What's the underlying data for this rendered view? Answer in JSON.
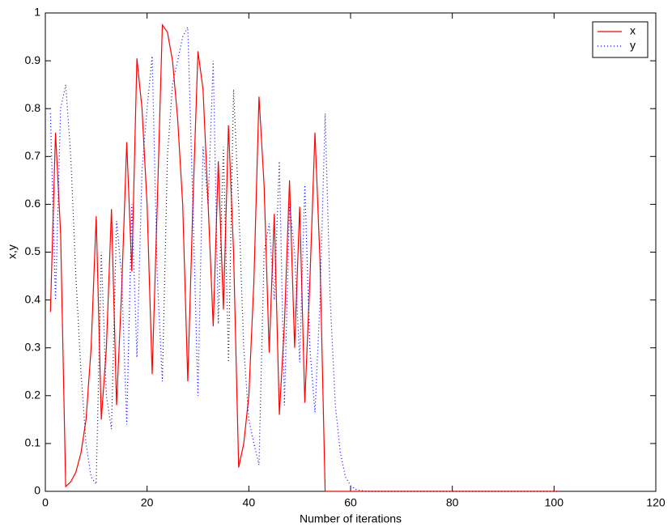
{
  "chart_data": {
    "type": "line",
    "xlabel": "Number of iterations",
    "ylabel": "x,y",
    "xlim": [
      0,
      120
    ],
    "xticks": [
      0,
      20,
      40,
      60,
      80,
      100,
      120
    ],
    "ylim": [
      0,
      1
    ],
    "yticks": [
      0,
      0.1,
      0.2,
      0.3,
      0.4,
      0.5,
      0.6,
      0.7,
      0.8,
      0.9,
      1
    ],
    "legend": "upper right",
    "grid": false,
    "x": [
      1,
      2,
      3,
      4,
      5,
      6,
      7,
      8,
      9,
      10,
      11,
      12,
      13,
      14,
      15,
      16,
      17,
      18,
      19,
      20,
      21,
      22,
      23,
      24,
      25,
      26,
      27,
      28,
      29,
      30,
      31,
      32,
      33,
      34,
      35,
      36,
      37,
      38,
      39,
      40,
      41,
      42,
      43,
      44,
      45,
      46,
      47,
      48,
      49,
      50,
      51,
      52,
      53,
      54,
      55,
      56,
      57,
      58,
      59,
      60,
      61,
      62,
      63,
      64,
      65,
      66,
      67,
      68,
      69,
      70,
      71,
      72,
      73,
      74,
      75,
      76,
      77,
      78,
      79,
      80,
      81,
      82,
      83,
      84,
      85,
      86,
      87,
      88,
      89,
      90,
      91,
      92,
      93,
      94,
      95,
      96,
      97,
      98,
      99,
      100,
      101
    ],
    "series": [
      {
        "name": "x",
        "color": "#ff0000",
        "linestyle": "solid",
        "values": [
          0.375,
          0.75,
          0.54,
          0.01,
          0.02,
          0.04,
          0.08,
          0.15,
          0.3,
          0.575,
          0.15,
          0.3,
          0.59,
          0.18,
          0.42,
          0.73,
          0.46,
          0.905,
          0.8,
          0.6,
          0.245,
          0.6,
          0.975,
          0.96,
          0.9,
          0.78,
          0.6,
          0.23,
          0.6,
          0.92,
          0.84,
          0.6,
          0.345,
          0.69,
          0.38,
          0.765,
          0.5,
          0.05,
          0.1,
          0.2,
          0.44,
          0.825,
          0.64,
          0.29,
          0.58,
          0.16,
          0.35,
          0.65,
          0.3,
          0.595,
          0.185,
          0.44,
          0.75,
          0.48,
          0,
          0,
          0,
          0,
          0,
          0,
          0,
          0,
          0,
          0,
          0,
          0,
          0,
          0,
          0,
          0,
          0,
          0,
          0,
          0,
          0,
          0,
          0,
          0,
          0,
          0,
          0,
          0,
          0,
          0,
          0,
          0,
          0,
          0,
          0,
          0,
          0,
          0,
          0,
          0,
          0,
          0,
          0,
          0,
          0,
          0,
          0
        ]
      },
      {
        "name": "y",
        "color": "#0000ff",
        "linestyle": "dotted",
        "values": [
          0.79,
          0.4,
          0.8,
          0.85,
          0.7,
          0.45,
          0.25,
          0.1,
          0.03,
          0.015,
          0.5,
          0.2,
          0.13,
          0.565,
          0.45,
          0.14,
          0.6,
          0.28,
          0.67,
          0.8,
          0.91,
          0.45,
          0.23,
          0.7,
          0.85,
          0.9,
          0.95,
          0.97,
          0.6,
          0.2,
          0.72,
          0.6,
          0.9,
          0.35,
          0.72,
          0.27,
          0.84,
          0.6,
          0.3,
          0.15,
          0.1,
          0.055,
          0.5,
          0.56,
          0.4,
          0.69,
          0.18,
          0.6,
          0.5,
          0.27,
          0.64,
          0.3,
          0.165,
          0.4,
          0.79,
          0.4,
          0.18,
          0.08,
          0.03,
          0.012,
          0.004,
          0.0015,
          0.0005,
          0,
          0,
          0,
          0,
          0,
          0,
          0,
          0,
          0,
          0,
          0,
          0,
          0,
          0,
          0,
          0,
          0,
          0,
          0,
          0,
          0,
          0,
          0,
          0,
          0,
          0,
          0,
          0,
          0,
          0,
          0,
          0,
          0,
          0,
          0,
          0,
          0,
          0
        ]
      }
    ]
  }
}
